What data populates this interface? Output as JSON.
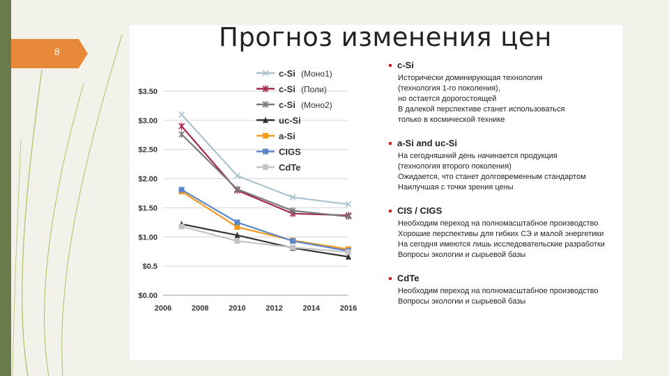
{
  "slide": {
    "number": "8",
    "title": "Прогноз изменения цен"
  },
  "colors": {
    "background": "#f3f2ea",
    "accent": "#e8893a",
    "bar": "#6b7a4a",
    "bullet": "#d02020",
    "series": [
      "#a9c3cd",
      "#a6294a",
      "#7a7a7a",
      "#333333",
      "#f59b1c",
      "#5b86c8",
      "#c3c3c3"
    ]
  },
  "chart_data": {
    "type": "line",
    "title": "",
    "xlabel": "",
    "ylabel": "",
    "xlim": [
      2006,
      2016
    ],
    "ylim": [
      0,
      3.5
    ],
    "x_ticks": [
      "2006",
      "2008",
      "2010",
      "2012",
      "2014",
      "2016"
    ],
    "y_ticks": [
      "$0.00",
      "$0.5",
      "$1.00",
      "$1.50",
      "$2.00",
      "$2.50",
      "$3.00",
      "$3.50"
    ],
    "grid": true,
    "legend_position": "top",
    "series": [
      {
        "name": "c-Si",
        "note": "(Моно1)",
        "marker": "cross",
        "x": [
          2007,
          2010,
          2013,
          2016
        ],
        "values": [
          3.1,
          2.05,
          1.68,
          1.56
        ]
      },
      {
        "name": "c-Si",
        "note": "(Поли)",
        "marker": "star",
        "x": [
          2007,
          2010,
          2013,
          2016
        ],
        "values": [
          2.9,
          1.8,
          1.4,
          1.37
        ]
      },
      {
        "name": "c-Si",
        "note": "(Моно2)",
        "marker": "star",
        "x": [
          2007,
          2010,
          2013,
          2016
        ],
        "values": [
          2.76,
          1.82,
          1.45,
          1.35
        ]
      },
      {
        "name": "uc-Si",
        "note": "",
        "marker": "triangle",
        "x": [
          2007,
          2010,
          2013,
          2016
        ],
        "values": [
          1.22,
          1.03,
          0.81,
          0.66
        ]
      },
      {
        "name": "a-Si",
        "note": "",
        "marker": "square",
        "x": [
          2007,
          2010,
          2013,
          2016
        ],
        "values": [
          1.78,
          1.17,
          0.94,
          0.79
        ]
      },
      {
        "name": "CIGS",
        "note": "",
        "marker": "square",
        "x": [
          2007,
          2010,
          2013,
          2016
        ],
        "values": [
          1.81,
          1.25,
          0.93,
          0.76
        ]
      },
      {
        "name": "CdTe",
        "note": "",
        "marker": "square",
        "x": [
          2007,
          2010,
          2013,
          2016
        ],
        "values": [
          1.18,
          0.93,
          0.82,
          0.74
        ]
      }
    ]
  },
  "notes": [
    {
      "title": "c-Si",
      "lines": [
        "Исторически доминирующая технология",
        "(технология 1-го поколения),",
        "но остается дорогостоящей",
        "В далекой перспективе станет использоваться",
        "только  в космической технике"
      ]
    },
    {
      "title": "a-Si and uc-Si",
      "lines": [
        "На сегодняшний день начинается продукция",
        "(технология второго поколения)",
        "Ожидается, что станет долговременным стандартом",
        "Наилучшая с точки зрения цены"
      ]
    },
    {
      "title": "CIS / CIGS",
      "lines": [
        "Необходим переход на полномасштабное производство",
        "Хорошие перспективы для гибких СЭ и малой энергетики",
        "На сегодня имеются лишь исследовательские разработки",
        "Вопросы экологии и сырьевой базы"
      ]
    },
    {
      "title": "CdTe",
      "lines": [
        "Необходим переход на полномасштабное производство",
        "Вопросы экологии и сырьевой базы"
      ]
    }
  ]
}
